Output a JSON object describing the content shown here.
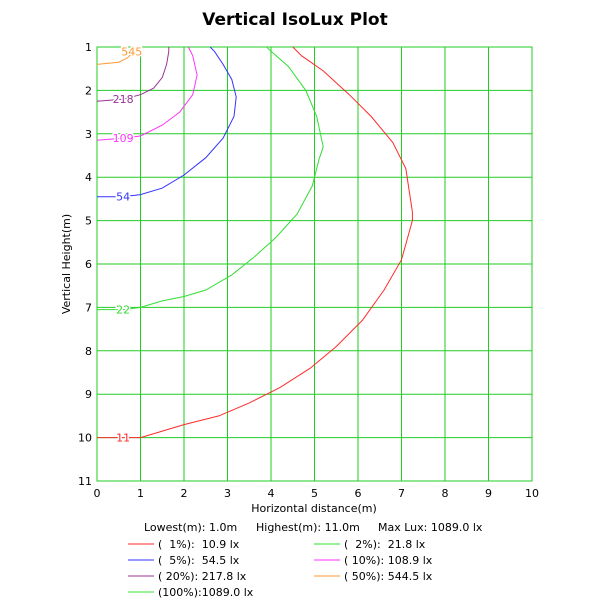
{
  "chart_data": {
    "type": "line",
    "title": "Vertical IsoLux Plot",
    "xlabel": "Horizontal distance(m)",
    "ylabel": "Vertical Height(m)",
    "xlim": [
      0,
      10
    ],
    "ylim": [
      1,
      11
    ],
    "y_inverted": true,
    "grid": true,
    "grid_color": "#22cc22",
    "x_ticks": [
      "0",
      "1",
      "2",
      "3",
      "4",
      "5",
      "6",
      "7",
      "8",
      "9",
      "10"
    ],
    "y_ticks": [
      "1",
      "2",
      "3",
      "4",
      "5",
      "6",
      "7",
      "8",
      "9",
      "10",
      "11"
    ],
    "series": [
      {
        "name": "11",
        "color": "#ff2a2a",
        "label_at": [
          0.6,
          10.0
        ],
        "points": [
          [
            0.0,
            10.0
          ],
          [
            0.6,
            10.0
          ],
          [
            1.0,
            10.0
          ],
          [
            1.5,
            9.85
          ],
          [
            2.0,
            9.7
          ],
          [
            2.8,
            9.5
          ],
          [
            3.5,
            9.2
          ],
          [
            4.2,
            8.85
          ],
          [
            4.9,
            8.4
          ],
          [
            5.5,
            7.9
          ],
          [
            6.1,
            7.3
          ],
          [
            6.6,
            6.6
          ],
          [
            7.0,
            5.9
          ],
          [
            7.25,
            5.0
          ],
          [
            7.25,
            4.8
          ],
          [
            7.1,
            3.8
          ],
          [
            6.8,
            3.2
          ],
          [
            6.3,
            2.6
          ],
          [
            5.8,
            2.1
          ],
          [
            5.2,
            1.55
          ],
          [
            4.7,
            1.2
          ],
          [
            4.5,
            1.0
          ]
        ]
      },
      {
        "name": "22",
        "color": "#33dd33",
        "label_at": [
          0.6,
          7.05
        ],
        "points": [
          [
            0.0,
            7.05
          ],
          [
            0.6,
            7.05
          ],
          [
            1.0,
            7.0
          ],
          [
            1.5,
            6.85
          ],
          [
            2.0,
            6.75
          ],
          [
            2.5,
            6.6
          ],
          [
            3.1,
            6.25
          ],
          [
            3.6,
            5.85
          ],
          [
            4.1,
            5.4
          ],
          [
            4.6,
            4.85
          ],
          [
            4.95,
            4.2
          ],
          [
            5.1,
            3.6
          ],
          [
            5.2,
            3.3
          ],
          [
            5.05,
            2.6
          ],
          [
            4.8,
            2.0
          ],
          [
            4.4,
            1.45
          ],
          [
            4.0,
            1.1
          ],
          [
            3.9,
            1.0
          ]
        ]
      },
      {
        "name": "54",
        "color": "#3333ff",
        "label_at": [
          0.6,
          4.45
        ],
        "points": [
          [
            0.0,
            4.45
          ],
          [
            0.6,
            4.45
          ],
          [
            1.0,
            4.4
          ],
          [
            1.5,
            4.25
          ],
          [
            2.0,
            3.95
          ],
          [
            2.5,
            3.55
          ],
          [
            2.9,
            3.1
          ],
          [
            3.15,
            2.6
          ],
          [
            3.2,
            2.15
          ],
          [
            3.1,
            1.75
          ],
          [
            2.9,
            1.4
          ],
          [
            2.7,
            1.1
          ],
          [
            2.6,
            1.0
          ]
        ]
      },
      {
        "name": "109",
        "color": "#ff33ff",
        "label_at": [
          0.6,
          3.1
        ],
        "points": [
          [
            0.0,
            3.15
          ],
          [
            0.6,
            3.1
          ],
          [
            1.0,
            3.05
          ],
          [
            1.5,
            2.8
          ],
          [
            1.9,
            2.5
          ],
          [
            2.2,
            2.1
          ],
          [
            2.3,
            1.65
          ],
          [
            2.2,
            1.2
          ],
          [
            2.1,
            1.0
          ]
        ]
      },
      {
        "name": "218",
        "color": "#993399",
        "label_at": [
          0.6,
          2.2
        ],
        "points": [
          [
            0.0,
            2.25
          ],
          [
            0.6,
            2.2
          ],
          [
            1.0,
            2.1
          ],
          [
            1.3,
            1.95
          ],
          [
            1.5,
            1.7
          ],
          [
            1.6,
            1.4
          ],
          [
            1.65,
            1.1
          ],
          [
            1.65,
            1.0
          ]
        ]
      },
      {
        "name": "545",
        "color": "#ff9933",
        "label_at": [
          0.8,
          1.1
        ],
        "points": [
          [
            0.0,
            1.4
          ],
          [
            0.5,
            1.35
          ],
          [
            0.7,
            1.25
          ],
          [
            0.85,
            1.1
          ],
          [
            0.9,
            1.0
          ]
        ]
      }
    ]
  },
  "info": {
    "lowest": "Lowest(m): 1.0m",
    "highest": "Highest(m): 11.0m",
    "max_lux": "Max Lux: 1089.0 lx"
  },
  "legend": [
    {
      "text": "(  1%):  10.9 lx",
      "color": "#ff2a2a"
    },
    {
      "text": "(  2%):  21.8 lx",
      "color": "#33dd33"
    },
    {
      "text": "(  5%):  54.5 lx",
      "color": "#3333ff"
    },
    {
      "text": "( 10%): 108.9 lx",
      "color": "#ff33ff"
    },
    {
      "text": "( 20%): 217.8 lx",
      "color": "#993399"
    },
    {
      "text": "( 50%): 544.5 lx",
      "color": "#ff9933"
    },
    {
      "text": "(100%):1089.0 lx",
      "color": "#33dd33"
    }
  ]
}
